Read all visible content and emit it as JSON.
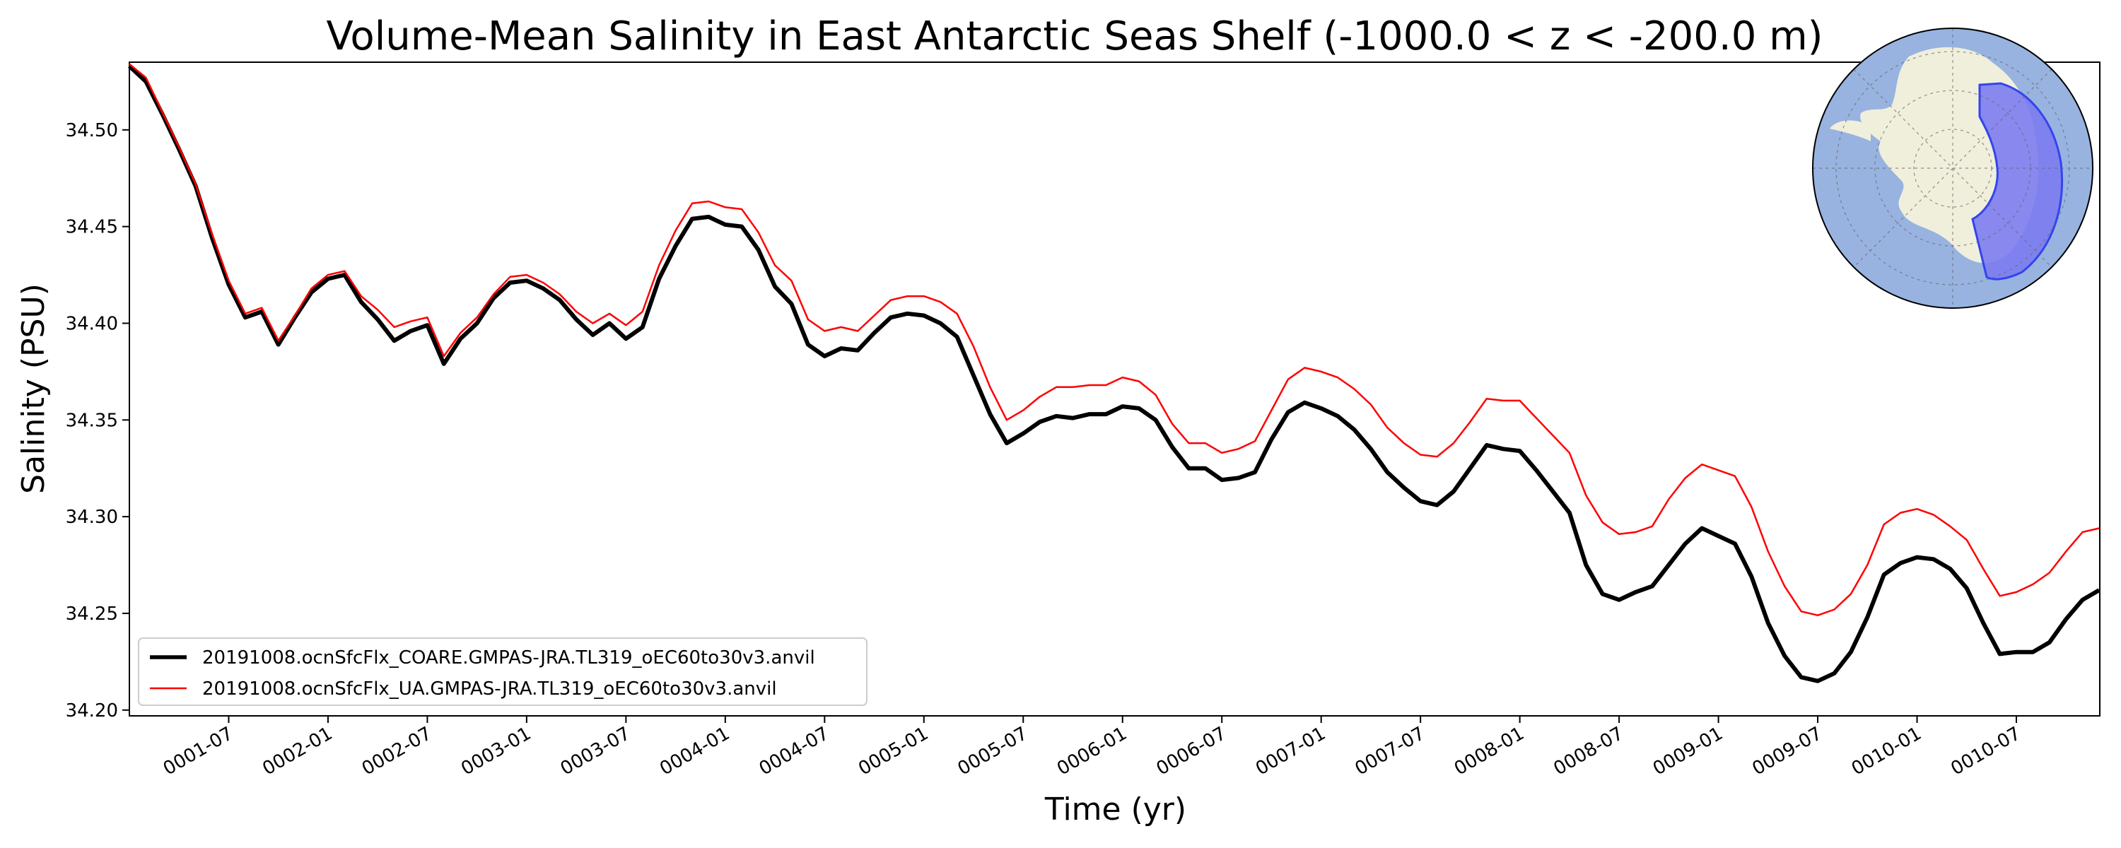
{
  "chart_data": {
    "type": "line",
    "title": "Volume-Mean Salinity in East Antarctic Seas Shelf (-1000.0 < z < -200.0 m)",
    "xlabel": "Time (yr)",
    "ylabel": "Salinity (PSU)",
    "xlim": [
      0.0,
      9.92
    ],
    "ylim": [
      34.197,
      34.535
    ],
    "x_ticks": [
      {
        "value": 0.5,
        "label": "0001-07"
      },
      {
        "value": 1.0,
        "label": "0002-01"
      },
      {
        "value": 1.5,
        "label": "0002-07"
      },
      {
        "value": 2.0,
        "label": "0003-01"
      },
      {
        "value": 2.5,
        "label": "0003-07"
      },
      {
        "value": 3.0,
        "label": "0004-01"
      },
      {
        "value": 3.5,
        "label": "0004-07"
      },
      {
        "value": 4.0,
        "label": "0005-01"
      },
      {
        "value": 4.5,
        "label": "0005-07"
      },
      {
        "value": 5.0,
        "label": "0006-01"
      },
      {
        "value": 5.5,
        "label": "0006-07"
      },
      {
        "value": 6.0,
        "label": "0007-01"
      },
      {
        "value": 6.5,
        "label": "0007-07"
      },
      {
        "value": 7.0,
        "label": "0008-01"
      },
      {
        "value": 7.5,
        "label": "0008-07"
      },
      {
        "value": 8.0,
        "label": "0009-01"
      },
      {
        "value": 8.5,
        "label": "0009-07"
      },
      {
        "value": 9.0,
        "label": "0010-01"
      },
      {
        "value": 9.5,
        "label": "0010-07"
      }
    ],
    "y_ticks": [
      {
        "value": 34.2,
        "label": "34.20"
      },
      {
        "value": 34.25,
        "label": "34.25"
      },
      {
        "value": 34.3,
        "label": "34.30"
      },
      {
        "value": 34.35,
        "label": "34.35"
      },
      {
        "value": 34.4,
        "label": "34.40"
      },
      {
        "value": 34.45,
        "label": "34.45"
      },
      {
        "value": 34.5,
        "label": "34.50"
      }
    ],
    "legend_position": "lower-left",
    "series": [
      {
        "name": "20191008.ocnSfcFlx_COARE.GMPAS-JRA.TL319_oEC60to30v3.anvil",
        "color": "#000000",
        "line_style": "thick",
        "x": [
          0.0,
          0.0833,
          0.1667,
          0.25,
          0.3333,
          0.4167,
          0.5,
          0.5833,
          0.6667,
          0.75,
          0.8333,
          0.9167,
          1.0,
          1.0833,
          1.1667,
          1.25,
          1.3333,
          1.4167,
          1.5,
          1.5833,
          1.6667,
          1.75,
          1.8333,
          1.9167,
          2.0,
          2.0833,
          2.1667,
          2.25,
          2.3333,
          2.4167,
          2.5,
          2.5833,
          2.6667,
          2.75,
          2.8333,
          2.9167,
          3.0,
          3.0833,
          3.1667,
          3.25,
          3.3333,
          3.4167,
          3.5,
          3.5833,
          3.6667,
          3.75,
          3.8333,
          3.9167,
          4.0,
          4.0833,
          4.1667,
          4.25,
          4.3333,
          4.4167,
          4.5,
          4.5833,
          4.6667,
          4.75,
          4.8333,
          4.9167,
          5.0,
          5.0833,
          5.1667,
          5.25,
          5.3333,
          5.4167,
          5.5,
          5.5833,
          5.6667,
          5.75,
          5.8333,
          5.9167,
          6.0,
          6.0833,
          6.1667,
          6.25,
          6.3333,
          6.4167,
          6.5,
          6.5833,
          6.6667,
          6.75,
          6.8333,
          6.9167,
          7.0,
          7.0833,
          7.1667,
          7.25,
          7.3333,
          7.4167,
          7.5,
          7.5833,
          7.6667,
          7.75,
          7.8333,
          7.9167,
          8.0,
          8.0833,
          8.1667,
          8.25,
          8.3333,
          8.4167,
          8.5,
          8.5833,
          8.6667,
          8.75,
          8.8333,
          8.9167,
          9.0,
          9.0833,
          9.1667,
          9.25,
          9.3333,
          9.4167,
          9.5,
          9.5833,
          9.6667,
          9.75,
          9.8333,
          9.9167
        ],
        "y": [
          34.533,
          34.525,
          34.508,
          34.49,
          34.471,
          34.444,
          34.42,
          34.403,
          34.406,
          34.389,
          34.403,
          34.416,
          34.423,
          34.425,
          34.411,
          34.402,
          34.391,
          34.396,
          34.399,
          34.379,
          34.392,
          34.4,
          34.413,
          34.421,
          34.422,
          34.418,
          34.412,
          34.402,
          34.394,
          34.4,
          34.392,
          34.398,
          34.423,
          34.44,
          34.454,
          34.455,
          34.451,
          34.45,
          34.438,
          34.419,
          34.41,
          34.389,
          34.383,
          34.387,
          34.386,
          34.395,
          34.403,
          34.405,
          34.404,
          34.4,
          34.393,
          34.373,
          34.353,
          34.338,
          34.343,
          34.349,
          34.352,
          34.351,
          34.353,
          34.353,
          34.357,
          34.356,
          34.35,
          34.336,
          34.325,
          34.325,
          34.319,
          34.32,
          34.323,
          34.34,
          34.354,
          34.359,
          34.356,
          34.352,
          34.345,
          34.335,
          34.323,
          34.315,
          34.308,
          34.306,
          34.313,
          34.325,
          34.337,
          34.335,
          34.334,
          34.324,
          34.313,
          34.302,
          34.275,
          34.26,
          34.257,
          34.261,
          34.264,
          34.275,
          34.286,
          34.294,
          34.29,
          34.286,
          34.269,
          34.245,
          34.228,
          34.217,
          34.215,
          34.219,
          34.23,
          34.248,
          34.27,
          34.276,
          34.279,
          34.278,
          34.273,
          34.263,
          34.245,
          34.229,
          34.23,
          34.23,
          34.235,
          34.247,
          34.257,
          34.262
        ]
      },
      {
        "name": "20191008.ocnSfcFlx_UA.GMPAS-JRA.TL319_oEC60to30v3.anvil",
        "color": "#ff0000",
        "line_style": "thin",
        "x": [
          0.0,
          0.0833,
          0.1667,
          0.25,
          0.3333,
          0.4167,
          0.5,
          0.5833,
          0.6667,
          0.75,
          0.8333,
          0.9167,
          1.0,
          1.0833,
          1.1667,
          1.25,
          1.3333,
          1.4167,
          1.5,
          1.5833,
          1.6667,
          1.75,
          1.8333,
          1.9167,
          2.0,
          2.0833,
          2.1667,
          2.25,
          2.3333,
          2.4167,
          2.5,
          2.5833,
          2.6667,
          2.75,
          2.8333,
          2.9167,
          3.0,
          3.0833,
          3.1667,
          3.25,
          3.3333,
          3.4167,
          3.5,
          3.5833,
          3.6667,
          3.75,
          3.8333,
          3.9167,
          4.0,
          4.0833,
          4.1667,
          4.25,
          4.3333,
          4.4167,
          4.5,
          4.5833,
          4.6667,
          4.75,
          4.8333,
          4.9167,
          5.0,
          5.0833,
          5.1667,
          5.25,
          5.3333,
          5.4167,
          5.5,
          5.5833,
          5.6667,
          5.75,
          5.8333,
          5.9167,
          6.0,
          6.0833,
          6.1667,
          6.25,
          6.3333,
          6.4167,
          6.5,
          6.5833,
          6.6667,
          6.75,
          6.8333,
          6.9167,
          7.0,
          7.0833,
          7.1667,
          7.25,
          7.3333,
          7.4167,
          7.5,
          7.5833,
          7.6667,
          7.75,
          7.8333,
          7.9167,
          8.0,
          8.0833,
          8.1667,
          8.25,
          8.3333,
          8.4167,
          8.5,
          8.5833,
          8.6667,
          8.75,
          8.8333,
          8.9167,
          9.0,
          9.0833,
          9.1667,
          9.25,
          9.3333,
          9.4167,
          9.5,
          9.5833,
          9.6667,
          9.75,
          9.8333,
          9.9167
        ],
        "y": [
          34.534,
          34.527,
          34.509,
          34.491,
          34.472,
          34.446,
          34.422,
          34.405,
          34.408,
          34.391,
          34.404,
          34.418,
          34.425,
          34.427,
          34.414,
          34.407,
          34.398,
          34.401,
          34.403,
          34.383,
          34.395,
          34.403,
          34.415,
          34.424,
          34.425,
          34.421,
          34.415,
          34.406,
          34.4,
          34.405,
          34.399,
          34.406,
          34.43,
          34.448,
          34.462,
          34.463,
          34.46,
          34.459,
          34.447,
          34.43,
          34.422,
          34.402,
          34.396,
          34.398,
          34.396,
          34.404,
          34.412,
          34.414,
          34.414,
          34.411,
          34.405,
          34.388,
          34.367,
          34.35,
          34.355,
          34.362,
          34.367,
          34.367,
          34.368,
          34.368,
          34.372,
          34.37,
          34.363,
          34.348,
          34.338,
          34.338,
          34.333,
          34.335,
          34.339,
          34.355,
          34.371,
          34.377,
          34.375,
          34.372,
          34.366,
          34.358,
          34.346,
          34.338,
          34.332,
          34.331,
          34.338,
          34.349,
          34.361,
          34.36,
          34.36,
          34.351,
          34.342,
          34.333,
          34.311,
          34.297,
          34.291,
          34.292,
          34.295,
          34.309,
          34.32,
          34.327,
          34.324,
          34.321,
          34.305,
          34.282,
          34.264,
          34.251,
          34.249,
          34.252,
          34.26,
          34.275,
          34.296,
          34.302,
          34.304,
          34.301,
          34.295,
          34.288,
          34.273,
          34.259,
          34.261,
          34.265,
          34.271,
          34.282,
          34.292,
          34.294
        ]
      }
    ],
    "inset_map": {
      "description_name": "antarctic-region-inset-map",
      "ocean_color": "#98b3e0",
      "land_color": "#efefdc",
      "region_color": "#7c7cf0",
      "region_edge_color": "#3344ee"
    }
  }
}
